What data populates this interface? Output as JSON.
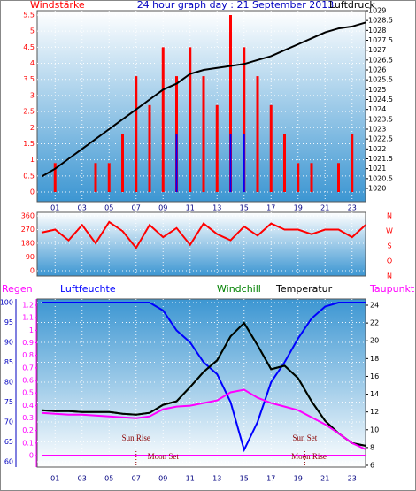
{
  "chart_data": [
    {
      "type": "bar",
      "title": "24 hour graph day : 21 September 2013",
      "x": [
        0,
        1,
        2,
        3,
        4,
        5,
        6,
        7,
        8,
        9,
        10,
        11,
        12,
        13,
        14,
        15,
        16,
        17,
        18,
        19,
        20,
        21,
        22,
        23,
        24
      ],
      "xlim": [
        0,
        24
      ],
      "xticks": [
        {
          "value": 1,
          "label": "01"
        },
        {
          "value": 3,
          "label": "03"
        },
        {
          "value": 5,
          "label": "05"
        },
        {
          "value": 7,
          "label": "07"
        },
        {
          "value": 9,
          "label": "09"
        },
        {
          "value": 11,
          "label": "11"
        },
        {
          "value": 13,
          "label": "13"
        },
        {
          "value": 15,
          "label": "15"
        },
        {
          "value": 17,
          "label": "17"
        },
        {
          "value": 19,
          "label": "19"
        },
        {
          "value": 21,
          "label": "21"
        },
        {
          "value": 23,
          "label": "23"
        }
      ],
      "ylim": [
        0,
        5.5
      ],
      "yticks": [
        0,
        0.5,
        1,
        1.5,
        2,
        2.5,
        3,
        3.5,
        4,
        4.5,
        5,
        5.5
      ],
      "ytick_color": "#ff0000",
      "y2lim": [
        1020,
        1029
      ],
      "y2ticks": [
        1020,
        1020.5,
        1021,
        1021.5,
        1022,
        1022.5,
        1023,
        1023.5,
        1024,
        1024.5,
        1025,
        1025.5,
        1026,
        1026.5,
        1027,
        1027.5,
        1028,
        1028.5,
        1029
      ],
      "y2tick_color": "#000000",
      "grid": true,
      "series": [
        {
          "name": "Windstärke",
          "color": "#ff0000",
          "values": [
            0,
            0.9,
            0,
            0,
            0.9,
            0.9,
            1.8,
            3.6,
            2.7,
            4.5,
            3.6,
            4.5,
            3.6,
            2.7,
            5.5,
            4.5,
            3.6,
            2.7,
            1.8,
            0.9,
            0.9,
            0,
            0.9,
            1.8,
            0
          ]
        },
        {
          "color": "#0000ff",
          "values": [
            0,
            0,
            0,
            0,
            0,
            0,
            0,
            0,
            0,
            0,
            1.8,
            0,
            0,
            0,
            1.8,
            1.8,
            0,
            0,
            0,
            0,
            0,
            0,
            0,
            0,
            0
          ]
        },
        {
          "name": "Luftdruck",
          "type": "line",
          "axis": "y2",
          "color": "#000000",
          "values": [
            1020.6,
            1021.0,
            1021.5,
            1022.0,
            1022.5,
            1023.0,
            1023.5,
            1024.0,
            1024.5,
            1025.0,
            1025.3,
            1025.8,
            1026.0,
            1026.1,
            1026.2,
            1026.3,
            1026.5,
            1026.7,
            1027.0,
            1027.3,
            1027.6,
            1027.9,
            1028.1,
            1028.2,
            1028.4
          ]
        }
      ]
    },
    {
      "type": "line",
      "x": [
        0,
        1,
        2,
        3,
        4,
        5,
        6,
        7,
        8,
        9,
        10,
        11,
        12,
        13,
        14,
        15,
        16,
        17,
        18,
        19,
        20,
        21,
        22,
        23,
        24
      ],
      "xlim": [
        0,
        24
      ],
      "ylim": [
        0,
        360
      ],
      "yticks": [
        0,
        90,
        180,
        270,
        360
      ],
      "ytick_color": "#ff0000",
      "compass": [
        "N",
        "W",
        "S",
        "O",
        "N"
      ],
      "grid": true,
      "series": [
        {
          "color": "#ff0000",
          "values": [
            250,
            270,
            200,
            300,
            180,
            320,
            260,
            150,
            300,
            220,
            280,
            170,
            310,
            240,
            200,
            290,
            230,
            310,
            270,
            270,
            240,
            270,
            270,
            220,
            300
          ]
        }
      ]
    },
    {
      "type": "line",
      "x": [
        0,
        1,
        2,
        3,
        4,
        5,
        6,
        7,
        8,
        9,
        10,
        11,
        12,
        13,
        14,
        15,
        16,
        17,
        18,
        19,
        20,
        21,
        22,
        23,
        24
      ],
      "xlim": [
        0,
        24
      ],
      "xticks": [
        {
          "value": 1,
          "label": "01"
        },
        {
          "value": 3,
          "label": "03"
        },
        {
          "value": 5,
          "label": "05"
        },
        {
          "value": 7,
          "label": "07"
        },
        {
          "value": 9,
          "label": "09"
        },
        {
          "value": 11,
          "label": "11"
        },
        {
          "value": 13,
          "label": "13"
        },
        {
          "value": 15,
          "label": "15"
        },
        {
          "value": 17,
          "label": "17"
        },
        {
          "value": 19,
          "label": "19"
        },
        {
          "value": 21,
          "label": "21"
        },
        {
          "value": 23,
          "label": "23"
        }
      ],
      "ylim": [
        60,
        100
      ],
      "yticks": [
        60,
        65,
        70,
        75,
        80,
        85,
        90,
        95,
        100
      ],
      "ytick_color": "#0000c0",
      "y3lim": [
        0,
        1.2
      ],
      "y3ticks": [
        0,
        0.1,
        0.2,
        0.3,
        0.4,
        0.5,
        0.6,
        0.7,
        0.8,
        0.9,
        1,
        1.1,
        1.2
      ],
      "y3tick_color": "#ff00ff",
      "y2lim": [
        6,
        24
      ],
      "y2ticks": [
        6,
        8,
        10,
        12,
        14,
        16,
        18,
        20,
        22,
        24
      ],
      "y2tick_color": "#000000",
      "grid": true,
      "series": [
        {
          "name": "Regen",
          "axis": "y3",
          "color": "#ff00ff",
          "values": [
            0,
            0,
            0,
            0,
            0,
            0,
            0,
            0,
            0,
            0,
            0,
            0,
            0,
            0,
            0,
            0,
            0,
            0,
            0,
            0,
            0,
            0,
            0,
            0,
            0
          ]
        },
        {
          "name": "Luftfeuchte",
          "color": "#0000ff",
          "values": [
            100,
            100,
            100,
            100,
            100,
            100,
            100,
            100,
            100,
            98,
            93,
            90,
            85,
            82,
            75,
            63,
            70,
            80,
            85,
            91,
            96,
            99,
            100,
            100,
            100
          ]
        },
        {
          "name": "Windchill",
          "axis": "y2",
          "color": "#008000",
          "values": [
            12.2,
            12.1,
            12.1,
            12.0,
            12.0,
            12.0,
            11.8,
            11.7,
            11.9,
            12.8,
            13.2,
            14.8,
            16.5,
            17.8,
            20.5,
            22.0,
            19.5,
            16.8,
            17.2,
            15.8,
            13.2,
            11.0,
            9.6,
            8.5,
            8.2
          ]
        },
        {
          "name": "Temperatur",
          "axis": "y2",
          "color": "#000000",
          "values": [
            12.2,
            12.1,
            12.1,
            12.0,
            12.0,
            12.0,
            11.8,
            11.7,
            11.9,
            12.8,
            13.2,
            14.8,
            16.5,
            17.8,
            20.5,
            22.0,
            19.5,
            16.8,
            17.2,
            15.8,
            13.2,
            11.0,
            9.6,
            8.5,
            8.2
          ]
        },
        {
          "name": "Taupunkt",
          "axis": "y2",
          "color": "#ff00ff",
          "values": [
            11.9,
            11.8,
            11.7,
            11.7,
            11.6,
            11.5,
            11.4,
            11.3,
            11.5,
            12.3,
            12.6,
            12.7,
            13.0,
            13.3,
            14.2,
            14.5,
            13.6,
            13.0,
            12.6,
            12.2,
            11.4,
            10.6,
            9.6,
            8.5,
            7.8
          ]
        }
      ],
      "annotations": [
        {
          "text": "Sun Rise",
          "x": 7
        },
        {
          "text": "Moon Set",
          "x": 9
        },
        {
          "text": "Sun Set",
          "x": 19.5
        },
        {
          "text": "Moon Rise",
          "x": 19.8
        }
      ]
    }
  ]
}
